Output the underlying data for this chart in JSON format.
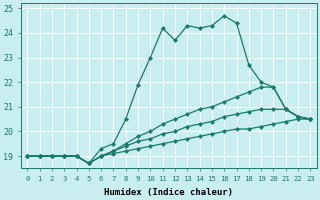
{
  "xlabel": "Humidex (Indice chaleur)",
  "ylabel": "",
  "xlim": [
    -0.5,
    23.5
  ],
  "ylim": [
    18.5,
    25.2
  ],
  "xticks": [
    0,
    1,
    2,
    3,
    4,
    5,
    6,
    7,
    8,
    9,
    10,
    11,
    12,
    13,
    14,
    15,
    16,
    17,
    18,
    19,
    20,
    21,
    22,
    23
  ],
  "yticks": [
    19,
    20,
    21,
    22,
    23,
    24,
    25
  ],
  "bg_color": "#c8eef0",
  "line_color": "#1a7a6a",
  "grid_color": "#ffffff",
  "lines": [
    [
      19.0,
      19.0,
      19.0,
      19.0,
      19.0,
      18.7,
      19.3,
      19.5,
      20.5,
      21.9,
      23.0,
      24.2,
      23.7,
      24.3,
      24.2,
      24.3,
      24.7,
      24.4,
      22.7,
      22.0,
      21.8,
      20.9,
      20.6,
      20.5
    ],
    [
      19.0,
      19.0,
      19.0,
      19.0,
      19.0,
      18.7,
      19.0,
      19.2,
      19.5,
      19.8,
      20.0,
      20.3,
      20.5,
      20.7,
      20.9,
      21.0,
      21.2,
      21.4,
      21.6,
      21.8,
      21.8,
      20.9,
      20.6,
      20.5
    ],
    [
      19.0,
      19.0,
      19.0,
      19.0,
      19.0,
      18.7,
      19.0,
      19.2,
      19.4,
      19.6,
      19.7,
      19.9,
      20.0,
      20.2,
      20.3,
      20.4,
      20.6,
      20.7,
      20.8,
      20.9,
      20.9,
      20.9,
      20.6,
      20.5
    ],
    [
      19.0,
      19.0,
      19.0,
      19.0,
      19.0,
      18.7,
      19.0,
      19.1,
      19.2,
      19.3,
      19.4,
      19.5,
      19.6,
      19.7,
      19.8,
      19.9,
      20.0,
      20.1,
      20.1,
      20.2,
      20.3,
      20.4,
      20.5,
      20.5
    ]
  ]
}
